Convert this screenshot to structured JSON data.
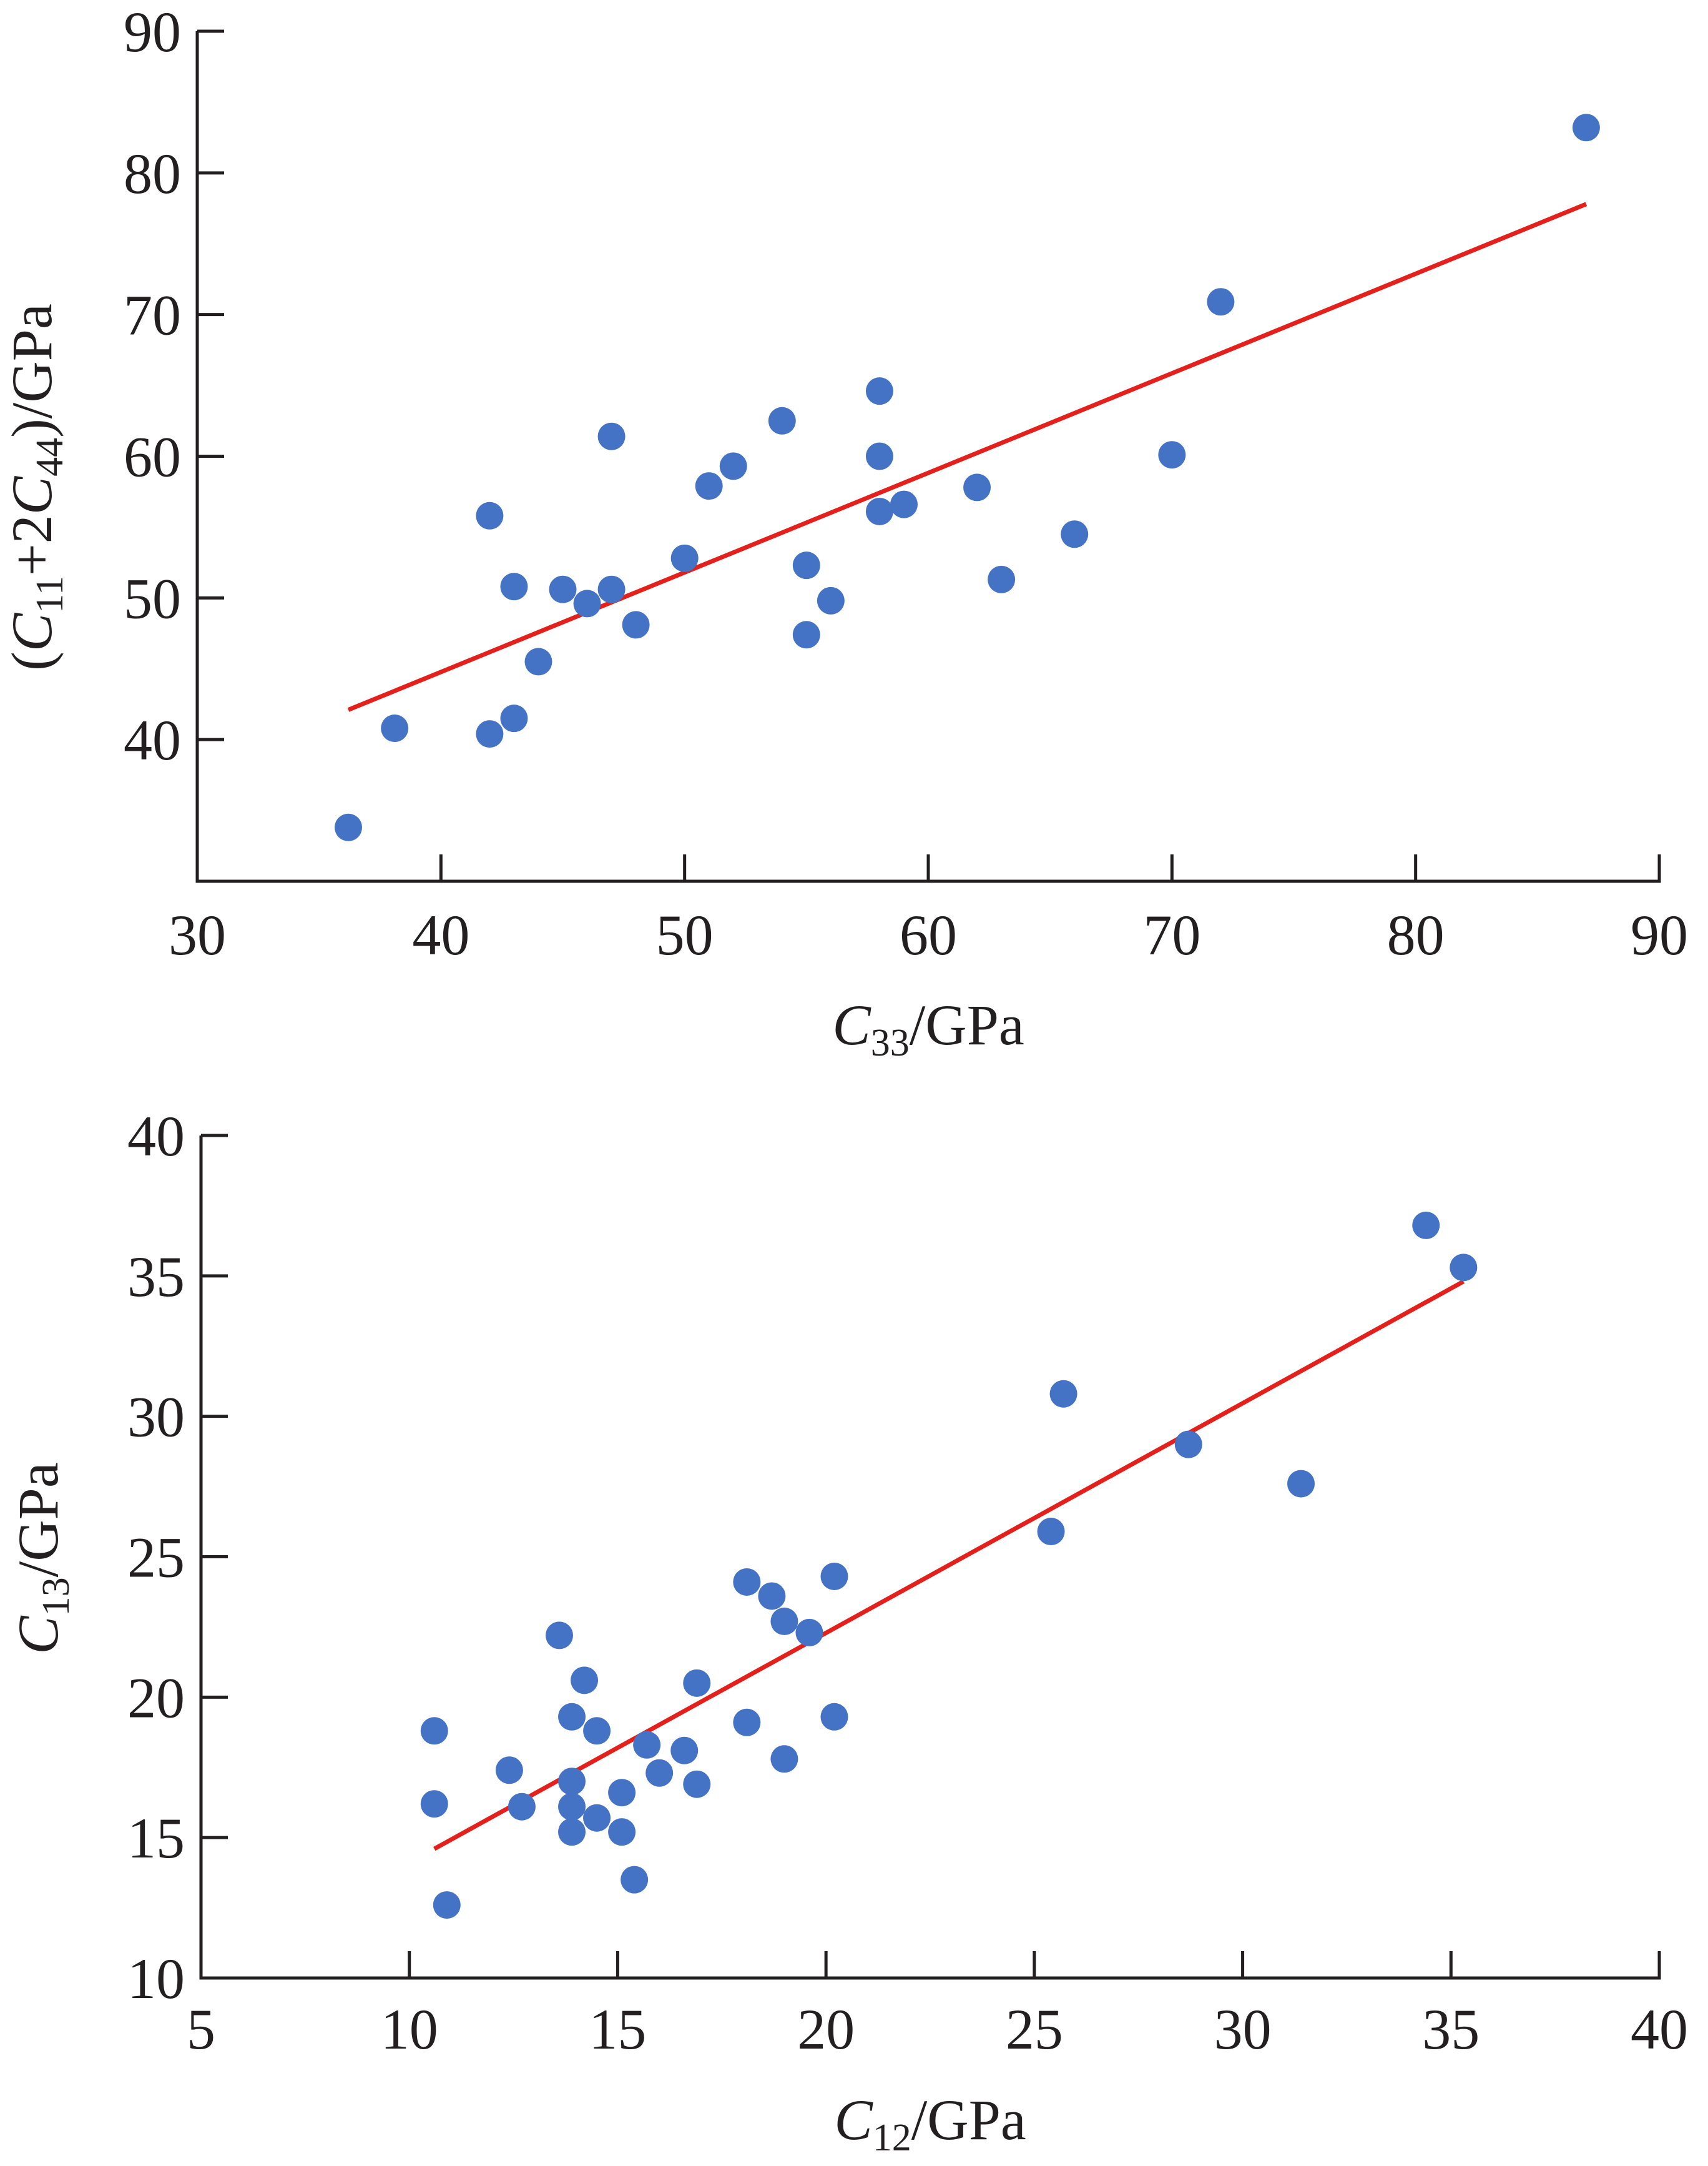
{
  "colors": {
    "points": "#4472c4",
    "fit_line": "#e3201b",
    "axis": "#231f20"
  },
  "chart_data": [
    {
      "type": "scatter",
      "title": "",
      "xlabel": {
        "main": "C",
        "sub": "33",
        "unit": "/GPa"
      },
      "ylabel": {
        "open": "(",
        "c1": "C",
        "s1": "11",
        "mid": "+2",
        "c2": "C",
        "s2": "44",
        "unit": ")/GPa"
      },
      "xlim": [
        30,
        90
      ],
      "ylim": [
        30,
        90
      ],
      "xticks": [
        30,
        40,
        50,
        60,
        70,
        80,
        90
      ],
      "yticks": [
        40,
        50,
        60,
        70,
        80,
        90
      ],
      "xtick_labels": [
        "30",
        "40",
        "50",
        "60",
        "70",
        "80",
        "90"
      ],
      "ytick_labels": [
        "40",
        "50",
        "60",
        "70",
        "80",
        "90"
      ],
      "grid": false,
      "points": [
        [
          36.2,
          33.8
        ],
        [
          38.1,
          40.8
        ],
        [
          42.0,
          40.4
        ],
        [
          43.0,
          41.5
        ],
        [
          44.0,
          45.5
        ],
        [
          42.0,
          55.8
        ],
        [
          43.0,
          50.8
        ],
        [
          45.0,
          50.6
        ],
        [
          46.0,
          49.6
        ],
        [
          47.0,
          50.6
        ],
        [
          48.0,
          48.1
        ],
        [
          47.0,
          61.4
        ],
        [
          50.0,
          52.8
        ],
        [
          51.0,
          57.9
        ],
        [
          52.0,
          59.3
        ],
        [
          54.0,
          62.5
        ],
        [
          55.0,
          52.3
        ],
        [
          55.0,
          47.4
        ],
        [
          56.0,
          49.8
        ],
        [
          58.0,
          56.1
        ],
        [
          58.0,
          60.0
        ],
        [
          58.0,
          64.6
        ],
        [
          59.0,
          56.6
        ],
        [
          62.0,
          57.8
        ],
        [
          63.0,
          51.3
        ],
        [
          66.0,
          54.5
        ],
        [
          70.0,
          60.1
        ],
        [
          72.0,
          70.9
        ],
        [
          87.0,
          83.2
        ]
      ],
      "fit_line": [
        [
          36.2,
          42.1
        ],
        [
          87.0,
          77.8
        ]
      ]
    },
    {
      "type": "scatter",
      "title": "",
      "xlabel": {
        "main": "C",
        "sub": "12",
        "unit": "/GPa"
      },
      "ylabel": {
        "main": "C",
        "sub": "13",
        "unit": "/GPa"
      },
      "xlim": [
        5,
        40
      ],
      "ylim": [
        10,
        40
      ],
      "xticks": [
        5,
        10,
        15,
        20,
        25,
        30,
        35,
        40
      ],
      "yticks": [
        10,
        15,
        20,
        25,
        30,
        35,
        40
      ],
      "xtick_labels": [
        "5",
        "10",
        "15",
        "20",
        "25",
        "30",
        "35",
        "40"
      ],
      "ytick_labels": [
        "10",
        "15",
        "20",
        "25",
        "30",
        "35",
        "40"
      ],
      "grid": false,
      "points": [
        [
          10.6,
          18.8
        ],
        [
          10.6,
          16.2
        ],
        [
          10.9,
          12.6
        ],
        [
          12.4,
          17.4
        ],
        [
          12.7,
          16.1
        ],
        [
          13.6,
          22.2
        ],
        [
          13.9,
          19.3
        ],
        [
          13.9,
          17.0
        ],
        [
          13.9,
          16.1
        ],
        [
          13.9,
          15.2
        ],
        [
          14.2,
          20.6
        ],
        [
          14.5,
          18.8
        ],
        [
          14.5,
          15.7
        ],
        [
          15.1,
          16.6
        ],
        [
          15.1,
          15.2
        ],
        [
          15.4,
          13.5
        ],
        [
          15.7,
          18.3
        ],
        [
          16.0,
          17.3
        ],
        [
          16.6,
          18.1
        ],
        [
          16.9,
          20.5
        ],
        [
          16.9,
          16.9
        ],
        [
          18.1,
          24.1
        ],
        [
          18.1,
          19.1
        ],
        [
          18.7,
          23.6
        ],
        [
          19.0,
          22.7
        ],
        [
          19.0,
          17.8
        ],
        [
          19.6,
          22.3
        ],
        [
          20.2,
          24.3
        ],
        [
          20.2,
          19.3
        ],
        [
          25.4,
          25.9
        ],
        [
          25.7,
          30.8
        ],
        [
          28.7,
          29.0
        ],
        [
          31.4,
          27.6
        ],
        [
          34.4,
          36.8
        ],
        [
          35.3,
          35.3
        ]
      ],
      "fit_line": [
        [
          10.6,
          14.6
        ],
        [
          35.3,
          34.8
        ]
      ]
    }
  ]
}
